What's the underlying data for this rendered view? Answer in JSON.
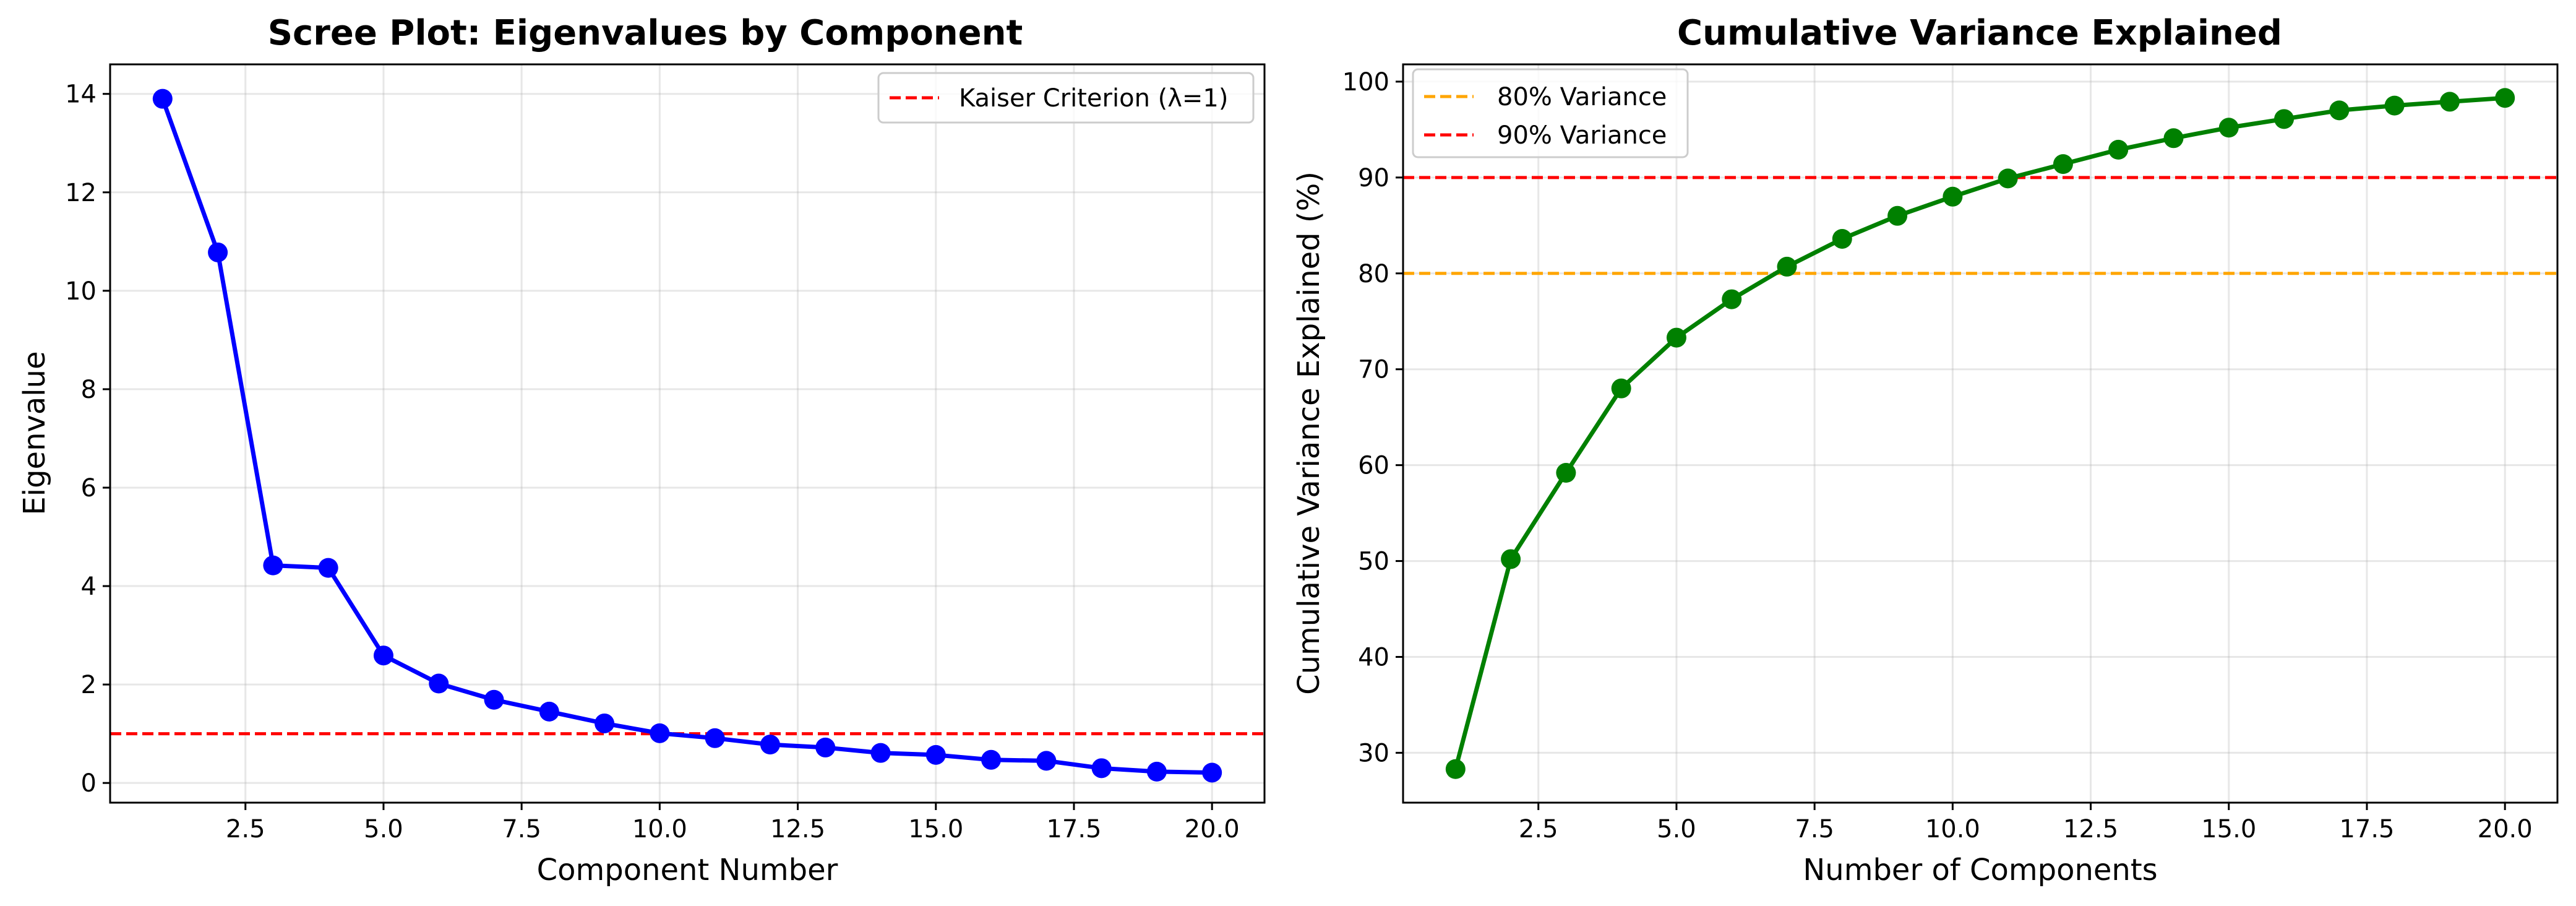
{
  "chart_data": [
    {
      "type": "line",
      "title": "Scree Plot: Eigenvalues by Component",
      "xlabel": "Component Number",
      "ylabel": "Eigenvalue",
      "xlim": [
        0.05,
        20.95
      ],
      "ylim": [
        -0.4,
        14.6
      ],
      "xticks": [
        2.5,
        5.0,
        7.5,
        10.0,
        12.5,
        15.0,
        17.5,
        20.0
      ],
      "xtick_labels": [
        "2.5",
        "5.0",
        "7.5",
        "10.0",
        "12.5",
        "15.0",
        "17.5",
        "20.0"
      ],
      "yticks": [
        0,
        2,
        4,
        6,
        8,
        10,
        12,
        14
      ],
      "ytick_labels": [
        "0",
        "2",
        "4",
        "6",
        "8",
        "10",
        "12",
        "14"
      ],
      "grid": true,
      "legend": {
        "position": "top-right",
        "entries": [
          "Kaiser Criterion (λ=1)"
        ]
      },
      "series": [
        {
          "color": "#0000ff",
          "marker": "circle",
          "x": [
            1,
            2,
            3,
            4,
            5,
            6,
            7,
            8,
            9,
            10,
            11,
            12,
            13,
            14,
            15,
            16,
            17,
            18,
            19,
            20
          ],
          "y": [
            13.9,
            10.78,
            4.42,
            4.37,
            2.59,
            2.02,
            1.69,
            1.45,
            1.21,
            1.01,
            0.91,
            0.78,
            0.72,
            0.61,
            0.57,
            0.47,
            0.45,
            0.3,
            0.23,
            0.21
          ]
        }
      ],
      "reference_lines": [
        {
          "name": "Kaiser Criterion (λ=1)",
          "y": 1.0,
          "color": "#ff0000",
          "style": "dashed"
        }
      ]
    },
    {
      "type": "line",
      "title": "Cumulative Variance Explained",
      "xlabel": "Number of Components",
      "ylabel": "Cumulative Variance Explained (%)",
      "xlim": [
        0.05,
        20.95
      ],
      "ylim": [
        24.8,
        101.8
      ],
      "xticks": [
        2.5,
        5.0,
        7.5,
        10.0,
        12.5,
        15.0,
        17.5,
        20.0
      ],
      "xtick_labels": [
        "2.5",
        "5.0",
        "7.5",
        "10.0",
        "12.5",
        "15.0",
        "17.5",
        "20.0"
      ],
      "yticks": [
        30,
        40,
        50,
        60,
        70,
        80,
        90,
        100
      ],
      "ytick_labels": [
        "30",
        "40",
        "50",
        "60",
        "70",
        "80",
        "90",
        "100"
      ],
      "grid": true,
      "legend": {
        "position": "top-left",
        "entries": [
          "80% Variance",
          "90% Variance"
        ]
      },
      "series": [
        {
          "color": "#008000",
          "marker": "circle",
          "x": [
            1,
            2,
            3,
            4,
            5,
            6,
            7,
            8,
            9,
            10,
            11,
            12,
            13,
            14,
            15,
            16,
            17,
            18,
            19,
            20
          ],
          "y": [
            28.3,
            50.2,
            59.2,
            68.0,
            73.3,
            77.3,
            80.7,
            83.6,
            86.0,
            88.0,
            89.9,
            91.4,
            92.9,
            94.1,
            95.2,
            96.1,
            97.0,
            97.5,
            97.9,
            98.3
          ]
        }
      ],
      "reference_lines": [
        {
          "name": "80% Variance",
          "y": 80,
          "color": "#ffa500",
          "style": "dashed"
        },
        {
          "name": "90% Variance",
          "y": 90,
          "color": "#ff0000",
          "style": "dashed"
        }
      ]
    }
  ]
}
